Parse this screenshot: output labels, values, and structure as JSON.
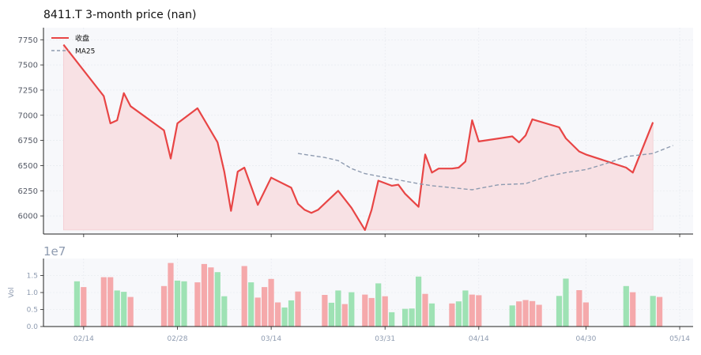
{
  "chart_data": [
    {
      "type": "line",
      "title": "8411.T  3-month price (nan)",
      "xlabel": "",
      "ylabel": "",
      "ylim": [
        5820,
        7870
      ],
      "yticks": [
        6000,
        6250,
        6500,
        6750,
        7000,
        7250,
        7500,
        7750
      ],
      "ytick_labels": [
        "6000",
        "6250",
        "6500",
        "6750",
        "7000",
        "7250",
        "7500",
        "7750"
      ],
      "grid": true,
      "legend_position": "top-left",
      "series": [
        {
          "name": "收盘",
          "style": "solid",
          "color": "#e84545",
          "fill_color": "#f8e1e4",
          "fill_baseline": 5860,
          "x": [
            "2025-02-11",
            "2025-02-17",
            "2025-02-18",
            "2025-02-19",
            "2025-02-20",
            "2025-02-21",
            "2025-02-26",
            "2025-02-27",
            "2025-02-28",
            "2025-03-03",
            "2025-03-06",
            "2025-03-07",
            "2025-03-08",
            "2025-03-09",
            "2025-03-10",
            "2025-03-12",
            "2025-03-14",
            "2025-03-17",
            "2025-03-18",
            "2025-03-19",
            "2025-03-20",
            "2025-03-21",
            "2025-03-24",
            "2025-03-26",
            "2025-03-28",
            "2025-03-29",
            "2025-03-30",
            "2025-04-01",
            "2025-04-02",
            "2025-04-03",
            "2025-04-05",
            "2025-04-06",
            "2025-04-07",
            "2025-04-08",
            "2025-04-10",
            "2025-04-11",
            "2025-04-12",
            "2025-04-13",
            "2025-04-14",
            "2025-04-19",
            "2025-04-20",
            "2025-04-21",
            "2025-04-22",
            "2025-04-26",
            "2025-04-27",
            "2025-04-29",
            "2025-04-30",
            "2025-05-06",
            "2025-05-07",
            "2025-05-10"
          ],
          "values": [
            7700,
            7190,
            6920,
            6950,
            7220,
            7090,
            6850,
            6570,
            6920,
            7070,
            6730,
            6440,
            6050,
            6440,
            6480,
            6110,
            6380,
            6280,
            6120,
            6060,
            6030,
            6060,
            6250,
            6080,
            5860,
            6060,
            6350,
            6300,
            6310,
            6220,
            6090,
            6610,
            6430,
            6470,
            6470,
            6480,
            6540,
            6950,
            6740,
            6790,
            6730,
            6800,
            6960,
            6880,
            6770,
            6640,
            6610,
            6480,
            6430,
            6930
          ]
        },
        {
          "name": "MA25",
          "style": "dashed",
          "color": "#8e9bb0",
          "x": [
            "2025-03-18",
            "2025-03-22",
            "2025-03-24",
            "2025-03-26",
            "2025-03-28",
            "2025-04-01",
            "2025-04-05",
            "2025-04-07",
            "2025-04-10",
            "2025-04-13",
            "2025-04-17",
            "2025-04-21",
            "2025-04-24",
            "2025-04-27",
            "2025-04-30",
            "2025-05-03",
            "2025-05-06",
            "2025-05-10",
            "2025-05-13"
          ],
          "values": [
            6620,
            6580,
            6550,
            6470,
            6420,
            6370,
            6320,
            6300,
            6280,
            6260,
            6310,
            6320,
            6390,
            6430,
            6460,
            6520,
            6590,
            6620,
            6700
          ]
        }
      ]
    },
    {
      "type": "bar",
      "title": "",
      "ylabel": "Vol",
      "offset_text": "1e7",
      "ylim": [
        0,
        2.0
      ],
      "yticks": [
        0.0,
        0.5,
        1.0,
        1.5
      ],
      "ytick_labels": [
        "0.0",
        "0.5",
        "1.0",
        "1.5"
      ],
      "xlim": [
        "2025-02-08",
        "2025-05-16"
      ],
      "xticks": [
        "2025-02-14",
        "2025-02-28",
        "2025-03-14",
        "2025-03-31",
        "2025-04-14",
        "2025-04-30",
        "2025-05-14"
      ],
      "xtick_labels": [
        "02/14",
        "02/28",
        "03/14",
        "03/31",
        "04/14",
        "04/30",
        "05/14"
      ],
      "up_color": "#9ee2b4",
      "down_color": "#f5a9ab",
      "bars": [
        {
          "date": "2025-02-13",
          "value": 1.33,
          "dir": "up"
        },
        {
          "date": "2025-02-14",
          "value": 1.16,
          "dir": "down"
        },
        {
          "date": "2025-02-17",
          "value": 1.45,
          "dir": "down"
        },
        {
          "date": "2025-02-18",
          "value": 1.45,
          "dir": "down"
        },
        {
          "date": "2025-02-19",
          "value": 1.06,
          "dir": "up"
        },
        {
          "date": "2025-02-20",
          "value": 1.02,
          "dir": "up"
        },
        {
          "date": "2025-02-21",
          "value": 0.87,
          "dir": "down"
        },
        {
          "date": "2025-02-26",
          "value": 1.19,
          "dir": "down"
        },
        {
          "date": "2025-02-27",
          "value": 1.87,
          "dir": "down"
        },
        {
          "date": "2025-02-28",
          "value": 1.35,
          "dir": "up"
        },
        {
          "date": "2025-03-01",
          "value": 1.33,
          "dir": "up"
        },
        {
          "date": "2025-03-03",
          "value": 1.3,
          "dir": "down"
        },
        {
          "date": "2025-03-04",
          "value": 1.84,
          "dir": "down"
        },
        {
          "date": "2025-03-05",
          "value": 1.74,
          "dir": "down"
        },
        {
          "date": "2025-03-06",
          "value": 1.6,
          "dir": "up"
        },
        {
          "date": "2025-03-07",
          "value": 0.89,
          "dir": "up"
        },
        {
          "date": "2025-03-10",
          "value": 1.78,
          "dir": "down"
        },
        {
          "date": "2025-03-11",
          "value": 1.3,
          "dir": "up"
        },
        {
          "date": "2025-03-12",
          "value": 0.85,
          "dir": "down"
        },
        {
          "date": "2025-03-13",
          "value": 1.16,
          "dir": "down"
        },
        {
          "date": "2025-03-14",
          "value": 1.4,
          "dir": "down"
        },
        {
          "date": "2025-03-15",
          "value": 0.71,
          "dir": "down"
        },
        {
          "date": "2025-03-16",
          "value": 0.56,
          "dir": "up"
        },
        {
          "date": "2025-03-17",
          "value": 0.77,
          "dir": "up"
        },
        {
          "date": "2025-03-18",
          "value": 1.03,
          "dir": "down"
        },
        {
          "date": "2025-03-22",
          "value": 0.93,
          "dir": "down"
        },
        {
          "date": "2025-03-23",
          "value": 0.7,
          "dir": "up"
        },
        {
          "date": "2025-03-24",
          "value": 1.06,
          "dir": "up"
        },
        {
          "date": "2025-03-25",
          "value": 0.66,
          "dir": "down"
        },
        {
          "date": "2025-03-26",
          "value": 1.01,
          "dir": "up"
        },
        {
          "date": "2025-03-28",
          "value": 0.94,
          "dir": "down"
        },
        {
          "date": "2025-03-29",
          "value": 0.84,
          "dir": "down"
        },
        {
          "date": "2025-03-30",
          "value": 1.27,
          "dir": "up"
        },
        {
          "date": "2025-03-31",
          "value": 0.89,
          "dir": "down"
        },
        {
          "date": "2025-04-01",
          "value": 0.42,
          "dir": "up"
        },
        {
          "date": "2025-04-03",
          "value": 0.52,
          "dir": "up"
        },
        {
          "date": "2025-04-04",
          "value": 0.53,
          "dir": "up"
        },
        {
          "date": "2025-04-05",
          "value": 1.47,
          "dir": "up"
        },
        {
          "date": "2025-04-06",
          "value": 0.96,
          "dir": "down"
        },
        {
          "date": "2025-04-07",
          "value": 0.68,
          "dir": "up"
        },
        {
          "date": "2025-04-10",
          "value": 0.68,
          "dir": "down"
        },
        {
          "date": "2025-04-11",
          "value": 0.74,
          "dir": "up"
        },
        {
          "date": "2025-04-12",
          "value": 1.06,
          "dir": "up"
        },
        {
          "date": "2025-04-13",
          "value": 0.94,
          "dir": "down"
        },
        {
          "date": "2025-04-14",
          "value": 0.92,
          "dir": "down"
        },
        {
          "date": "2025-04-19",
          "value": 0.62,
          "dir": "up"
        },
        {
          "date": "2025-04-20",
          "value": 0.74,
          "dir": "down"
        },
        {
          "date": "2025-04-21",
          "value": 0.78,
          "dir": "down"
        },
        {
          "date": "2025-04-22",
          "value": 0.75,
          "dir": "down"
        },
        {
          "date": "2025-04-23",
          "value": 0.64,
          "dir": "down"
        },
        {
          "date": "2025-04-26",
          "value": 0.9,
          "dir": "up"
        },
        {
          "date": "2025-04-27",
          "value": 1.41,
          "dir": "up"
        },
        {
          "date": "2025-04-29",
          "value": 1.07,
          "dir": "down"
        },
        {
          "date": "2025-04-30",
          "value": 0.71,
          "dir": "down"
        },
        {
          "date": "2025-05-06",
          "value": 1.19,
          "dir": "up"
        },
        {
          "date": "2025-05-07",
          "value": 1.01,
          "dir": "down"
        },
        {
          "date": "2025-05-10",
          "value": 0.9,
          "dir": "up"
        },
        {
          "date": "2025-05-11",
          "value": 0.87,
          "dir": "down"
        }
      ]
    }
  ],
  "colors": {
    "plot_bg": "#f7f8fb",
    "grid": "#e4e7ee",
    "axis": "#222222",
    "tick_text_price": "#555a66",
    "tick_text_volume": "#8e9bb0",
    "title_text": "#111111"
  }
}
